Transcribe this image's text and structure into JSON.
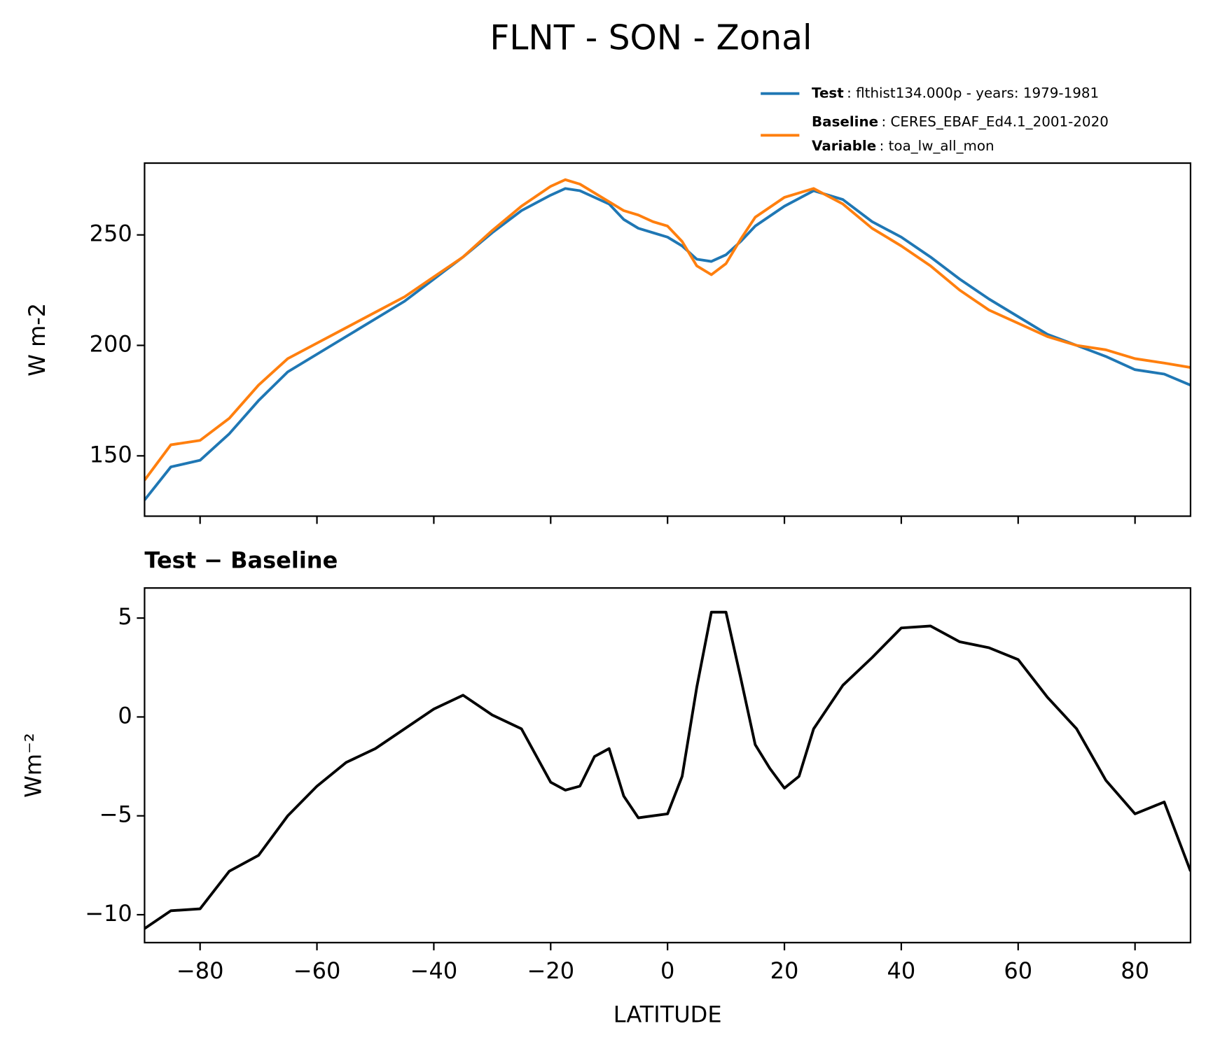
{
  "chart_data": [
    {
      "type": "line",
      "suptitle": "FLNT - SON - Zonal",
      "ylabel": "W m-2",
      "x": [
        -89.5,
        -85,
        -80,
        -75,
        -70,
        -65,
        -60,
        -55,
        -50,
        -45,
        -40,
        -35,
        -30,
        -25,
        -20,
        -17.5,
        -15,
        -10,
        -7.5,
        -5,
        -2.5,
        0,
        2.5,
        5,
        7.5,
        10,
        12.5,
        15,
        20,
        25,
        30,
        35,
        40,
        45,
        50,
        55,
        60,
        65,
        70,
        75,
        80,
        85,
        89.5
      ],
      "series": [
        {
          "name": "Test",
          "description": ": flthist134.000p - years: 1979-1981",
          "color": "#1f77b4",
          "values": [
            130,
            145,
            148,
            160,
            175,
            188,
            196,
            204,
            212,
            220,
            230,
            240,
            251,
            261,
            268,
            271,
            270,
            264,
            257,
            253,
            251,
            249,
            245,
            239,
            238,
            241,
            247,
            254,
            263,
            270,
            266,
            256,
            249,
            240,
            230,
            221,
            213,
            205,
            200,
            195,
            189,
            187,
            182
          ]
        },
        {
          "name": "Baseline",
          "description": ": CERES_EBAF_Ed4.1_2001-2020",
          "variable_label": "Variable",
          "variable": ": toa_lw_all_mon",
          "color": "#ff7f0e",
          "values": [
            139,
            155,
            157,
            167,
            182,
            194,
            201,
            208,
            215,
            222,
            231,
            240,
            252,
            263,
            272,
            275,
            273,
            265,
            261,
            259,
            256,
            254,
            247,
            236,
            232,
            237,
            248,
            258,
            267,
            271,
            264,
            253,
            245,
            236,
            225,
            216,
            210,
            204,
            200,
            198,
            194,
            192,
            190
          ]
        }
      ],
      "xlim": [
        -89.5,
        89.5
      ],
      "ylim": [
        122.7,
        282.5
      ],
      "xticks": [
        -80,
        -60,
        -40,
        -20,
        0,
        20,
        40,
        60,
        80
      ],
      "xticklabels": false,
      "yticks": [
        150,
        200,
        250
      ],
      "legend": "upper right"
    },
    {
      "type": "line",
      "title": "Test − Baseline",
      "ylabel": "Wm⁻²",
      "xlabel": "LATITUDE",
      "x": [
        -89.5,
        -85,
        -80,
        -75,
        -70,
        -65,
        -60,
        -55,
        -50,
        -45,
        -40,
        -35,
        -30,
        -25,
        -20,
        -17.5,
        -15,
        -12.5,
        -10,
        -7.5,
        -5,
        -2.5,
        0,
        2.5,
        5,
        7.5,
        10,
        12.5,
        15,
        17.5,
        20,
        22.5,
        25,
        30,
        35,
        40,
        45,
        50,
        55,
        60,
        65,
        70,
        75,
        80,
        85,
        89.5
      ],
      "series": [
        {
          "color": "#000000",
          "values": [
            -10.7,
            -9.8,
            -9.7,
            -7.8,
            -7,
            -5,
            -3.5,
            -2.3,
            -1.6,
            -0.6,
            0.4,
            1.1,
            0.1,
            -0.6,
            -3.3,
            -3.7,
            -3.5,
            -2,
            -1.6,
            -4,
            -5.1,
            -5,
            -4.9,
            -3,
            1.5,
            5.3,
            5.3,
            2,
            -1.4,
            -2.6,
            -3.6,
            -3,
            -0.6,
            1.6,
            3,
            4.5,
            4.6,
            3.8,
            3.5,
            2.9,
            1,
            -0.6,
            -3.2,
            -4.9,
            -4.3,
            -7.8
          ]
        }
      ],
      "xlim": [
        -89.5,
        89.5
      ],
      "ylim": [
        -11.41,
        6.52
      ],
      "xticks": [
        {
          "value": -80,
          "label": "−80"
        },
        {
          "value": -60,
          "label": "−60"
        },
        {
          "value": -40,
          "label": "−40"
        },
        {
          "value": -20,
          "label": "−20"
        },
        0,
        20,
        40,
        60,
        80
      ],
      "xticklabels": true,
      "yticks": [
        {
          "value": -10,
          "label": "−10"
        },
        {
          "value": -5,
          "label": "−5"
        },
        0,
        5
      ]
    }
  ]
}
